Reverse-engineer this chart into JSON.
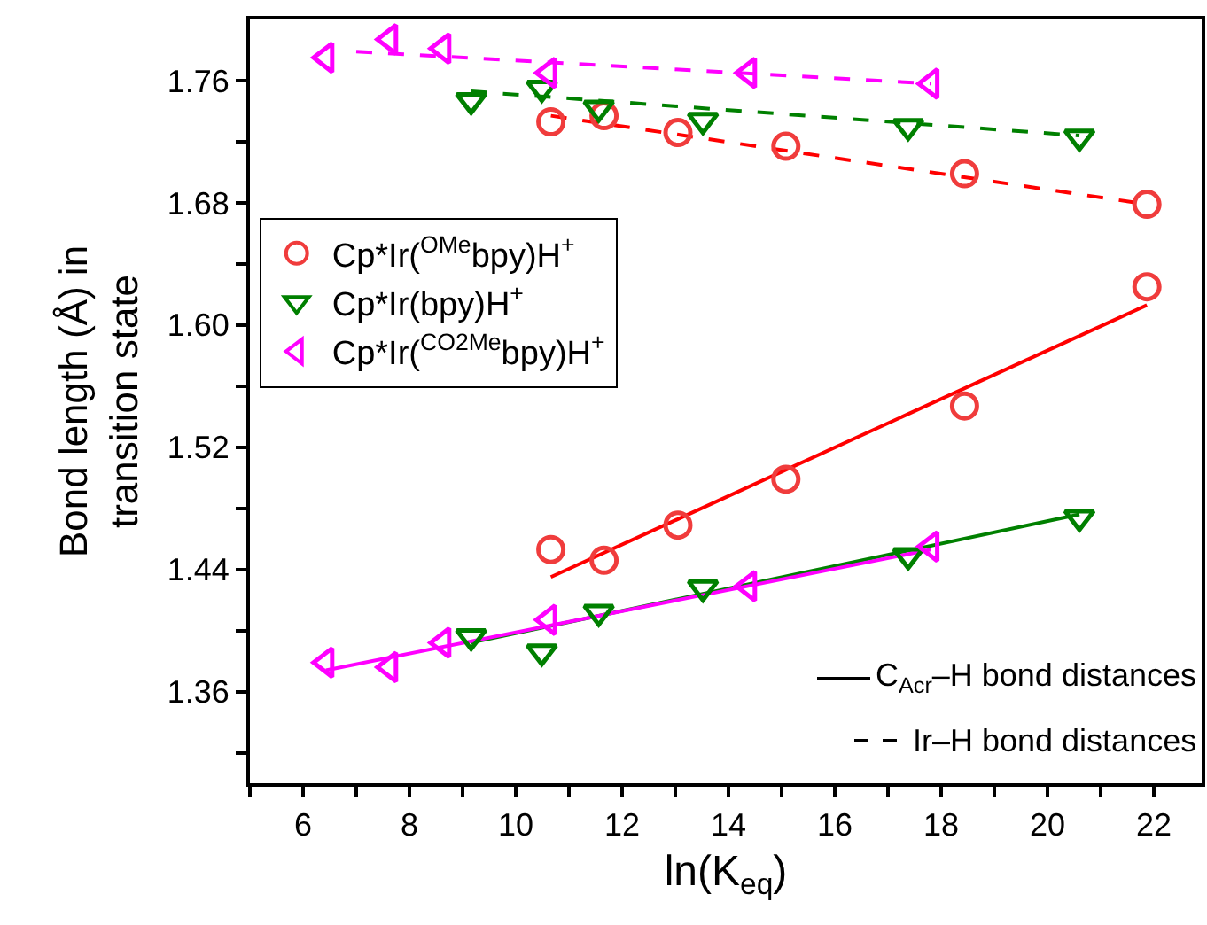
{
  "chart_data": {
    "type": "scatter",
    "xlabel": "ln(K$_{eq}$)",
    "ylabel": "Bond length (Å) in\ntransition state",
    "xlim": [
      5,
      22.9
    ],
    "ylim": [
      1.3,
      1.8
    ],
    "xticks": [
      {
        "value": 5,
        "label": null
      },
      6,
      {
        "value": 7,
        "label": null
      },
      8,
      {
        "value": 9,
        "label": null
      },
      10,
      {
        "value": 11,
        "label": null
      },
      12,
      {
        "value": 13,
        "label": null
      },
      14,
      {
        "value": 15,
        "label": null
      },
      16,
      {
        "value": 17,
        "label": null
      },
      18,
      {
        "value": 19,
        "label": null
      },
      20,
      {
        "value": 21,
        "label": null
      },
      22
    ],
    "yticks": [
      {
        "value": 1.32,
        "label": null
      },
      1.36,
      {
        "value": 1.4,
        "label": null
      },
      1.44,
      {
        "value": 1.48,
        "label": null
      },
      1.52,
      {
        "value": 1.56,
        "label": null
      },
      {
        "value": 1.6,
        "label": "1.60"
      },
      {
        "value": 1.64,
        "label": null
      },
      1.68,
      {
        "value": 1.72,
        "label": null
      },
      1.76
    ],
    "grid": false,
    "legend": "top left",
    "series": [
      {
        "type": "line",
        "line_style": "solid",
        "marker": "none",
        "color": "#ff0000",
        "x": [
          10.66,
          21.87
        ],
        "values": [
          1.435,
          1.613
        ]
      },
      {
        "type": "line",
        "line_style": "solid",
        "marker": "none",
        "color": "#008000",
        "x": [
          9.16,
          20.6
        ],
        "values": [
          1.392,
          1.476
        ]
      },
      {
        "type": "line",
        "line_style": "solid",
        "marker": "none",
        "color": "#ff00ff",
        "x": [
          6.43,
          17.81
        ],
        "values": [
          1.374,
          1.453
        ]
      },
      {
        "type": "line",
        "line_style": "dashed",
        "marker": "none",
        "color": "#ff0000",
        "x": [
          10.66,
          21.87
        ],
        "values": [
          1.737,
          1.679
        ]
      },
      {
        "type": "line",
        "line_style": "dashed",
        "marker": "none",
        "color": "#008000",
        "x": [
          9.16,
          20.6
        ],
        "values": [
          1.753,
          1.724
        ]
      },
      {
        "type": "line",
        "line_style": "dashed",
        "marker": "none",
        "color": "#ff00ff",
        "x": [
          7.0,
          17.81
        ],
        "values": [
          1.779,
          1.758
        ]
      },
      {
        "marker": "circle",
        "name": "Cp*Ir($^{OMe}$bpy)H$^{+}$",
        "color": "#f03c3c",
        "x": [
          10.66,
          11.66,
          13.05,
          15.08,
          18.44,
          21.87,
          10.66,
          11.66,
          13.05,
          15.08,
          18.44,
          21.87
        ],
        "values": [
          1.733,
          1.737,
          1.726,
          1.717,
          1.699,
          1.679,
          1.453,
          1.446,
          1.469,
          1.499,
          1.547,
          1.625
        ]
      },
      {
        "marker": "triangle-down",
        "name": "Cp*Ir(bpy)H$^{+}$",
        "color": "#008000",
        "x": [
          9.16,
          10.49,
          11.56,
          13.52,
          17.38,
          20.6,
          9.16,
          10.49,
          11.56,
          13.52,
          17.38,
          20.6
        ],
        "values": [
          1.747,
          1.755,
          1.742,
          1.734,
          1.73,
          1.723,
          1.396,
          1.386,
          1.412,
          1.428,
          1.449,
          1.474
        ]
      },
      {
        "marker": "triangle-left",
        "name": "Cp*Ir($^{CO2Me}$bpy)H$^{+}$",
        "color": "#ff00ff",
        "x": [
          6.43,
          7.63,
          8.63,
          10.62,
          14.38,
          17.81,
          6.43,
          7.63,
          8.63,
          10.62,
          14.38,
          17.81
        ],
        "values": [
          1.775,
          1.787,
          1.781,
          1.765,
          1.765,
          1.758,
          1.379,
          1.376,
          1.392,
          1.407,
          1.429,
          1.455
        ]
      }
    ],
    "annotations": [
      "C$_{Acr}$–H bond distances",
      "Ir–H bond distances"
    ]
  }
}
